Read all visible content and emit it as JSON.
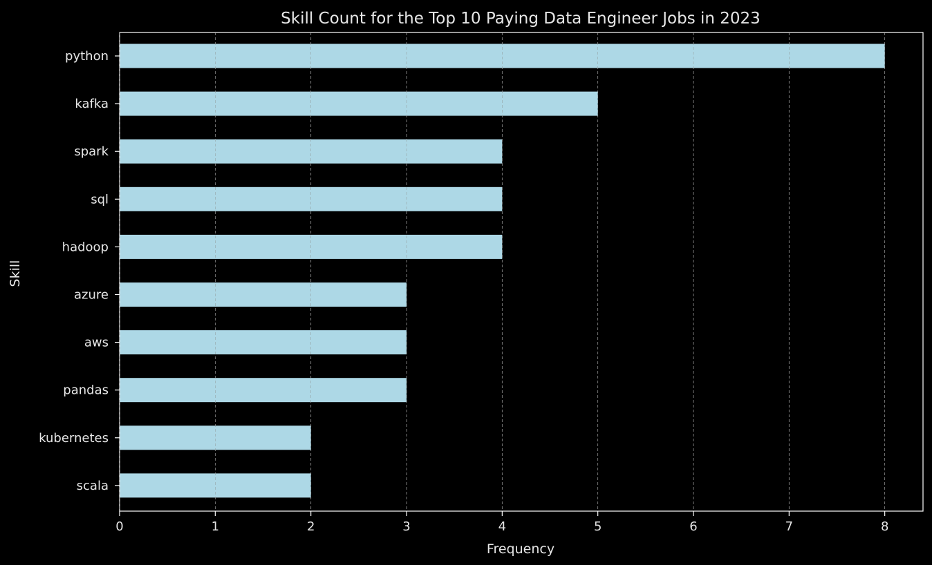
{
  "colors": {
    "background": "#000000",
    "text": "#e6e6e6",
    "bar": "#add8e6",
    "axis": "#ffffff",
    "grid": "#8c8c8c"
  },
  "chart_data": {
    "type": "bar",
    "orientation": "horizontal",
    "title": "Skill Count for the Top 10 Paying Data Engineer Jobs in 2023",
    "xlabel": "Frequency",
    "ylabel": "Skill",
    "categories": [
      "python",
      "kafka",
      "spark",
      "sql",
      "hadoop",
      "azure",
      "aws",
      "pandas",
      "kubernetes",
      "scala"
    ],
    "values": [
      8,
      5,
      4,
      4,
      4,
      3,
      3,
      3,
      2,
      2
    ],
    "xlim": [
      0,
      8.4
    ],
    "xticks": [
      "0",
      "1",
      "2",
      "3",
      "4",
      "5",
      "6",
      "7",
      "8"
    ],
    "grid": "x-axis dashed",
    "legend": "none"
  }
}
